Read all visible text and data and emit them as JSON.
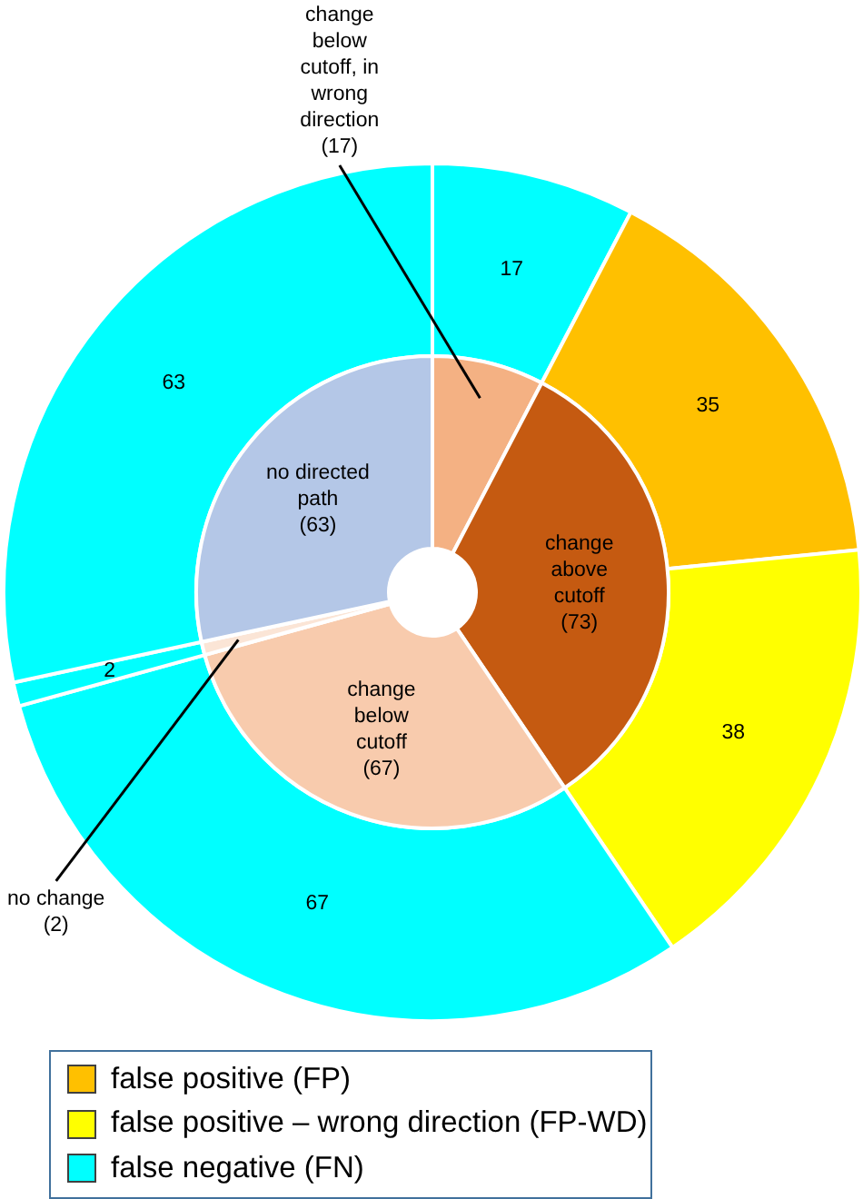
{
  "chart_data": [
    {
      "type": "donut",
      "categories": [
        "change below cutoff, in wrong direction",
        "change above cutoff",
        "change below cutoff",
        "no change",
        "no directed path"
      ],
      "values": [
        17,
        73,
        67,
        2,
        63
      ],
      "colors": [
        "#f4b183",
        "#c55a11",
        "#f8cbad",
        "#fbe5d6",
        "#b4c7e7"
      ],
      "value_labels": [
        "(17)",
        "(73)",
        "(67)",
        "(2)",
        "(63)"
      ]
    },
    {
      "type": "donut",
      "categories": [
        "false negative (FN)",
        "false positive (FP)",
        "false positive – wrong direction (FP-WD)",
        null,
        null,
        null
      ],
      "values": [
        17,
        35,
        38,
        67,
        2,
        63
      ],
      "colors": [
        "#00ffff",
        "#ffc000",
        "#ffff00",
        "#00ffff",
        "#00ffff",
        "#00ffff"
      ],
      "data_labels": true,
      "legend": "bottom"
    }
  ]
}
